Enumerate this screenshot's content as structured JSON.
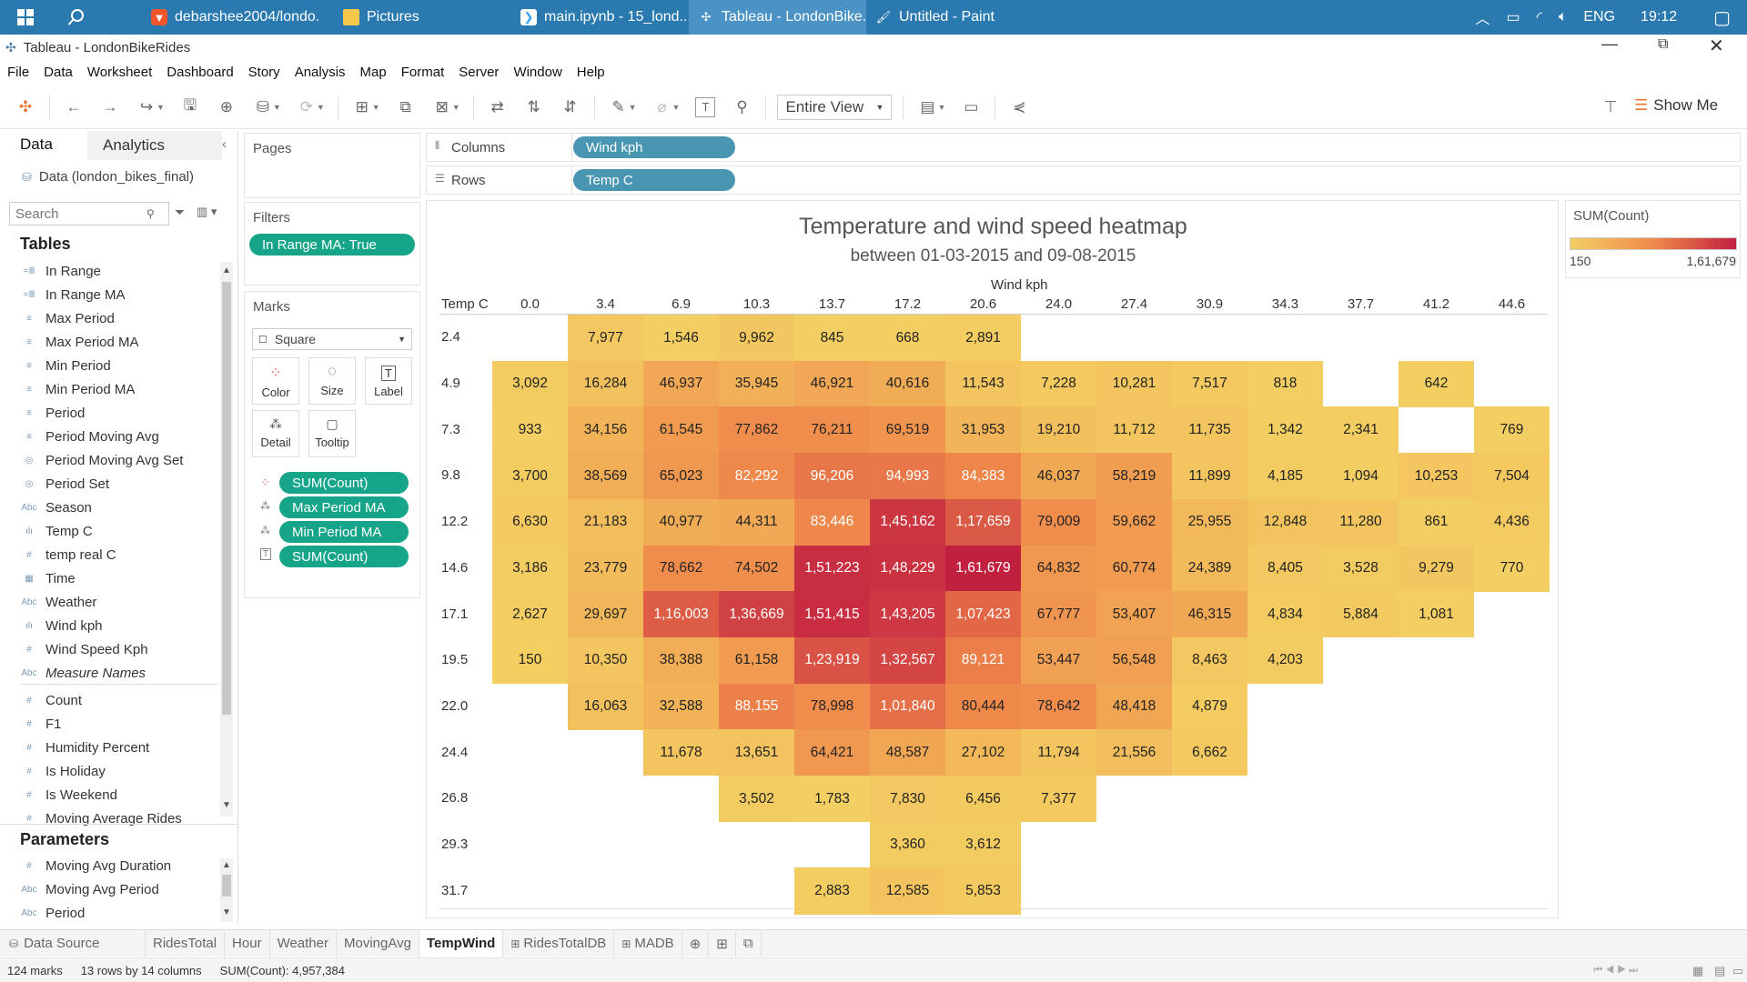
{
  "taskbar": {
    "tasks": [
      {
        "label": "debarshee2004/londo...",
        "icon": "brave-icon"
      },
      {
        "label": "Pictures",
        "icon": "folder-icon"
      },
      {
        "label": "main.ipynb - 15_lond...",
        "icon": "vscode-icon"
      },
      {
        "label": "Tableau - LondonBike...",
        "icon": "tableau-icon"
      },
      {
        "label": "Untitled - Paint",
        "icon": "paint-icon"
      }
    ],
    "lang": "ENG",
    "time": "19:12"
  },
  "window": {
    "title": "Tableau - LondonBikeRides"
  },
  "menu": [
    "File",
    "Data",
    "Worksheet",
    "Dashboard",
    "Story",
    "Analysis",
    "Map",
    "Format",
    "Server",
    "Window",
    "Help"
  ],
  "toolbar": {
    "view_select": "Entire View",
    "show_me": "Show Me"
  },
  "left_panel": {
    "tab_data": "Data",
    "tab_analytics": "Analytics",
    "datasource": "Data (london_bikes_final)",
    "search_placeholder": "Search",
    "tables_header": "Tables",
    "fields": [
      {
        "name": "In Range",
        "icon": "=Ⅲ"
      },
      {
        "name": "In Range MA",
        "icon": "=Ⅲ"
      },
      {
        "name": "Max Period",
        "icon": "≡"
      },
      {
        "name": "Max Period MA",
        "icon": "≡"
      },
      {
        "name": "Min Period",
        "icon": "≡"
      },
      {
        "name": "Min Period MA",
        "icon": "≡"
      },
      {
        "name": "Period",
        "icon": "≡"
      },
      {
        "name": "Period Moving Avg",
        "icon": "≡"
      },
      {
        "name": "Period Moving Avg Set",
        "icon": "◎"
      },
      {
        "name": "Period Set",
        "icon": "◎"
      },
      {
        "name": "Season",
        "icon": "Abc"
      },
      {
        "name": "Temp C",
        "icon": "ılı"
      },
      {
        "name": "temp real C",
        "icon": "#"
      },
      {
        "name": "Time",
        "icon": "▦"
      },
      {
        "name": "Weather",
        "icon": "Abc"
      },
      {
        "name": "Wind kph",
        "icon": "ılı"
      },
      {
        "name": "Wind Speed Kph",
        "icon": "#"
      },
      {
        "name": "Measure Names",
        "icon": "Abc"
      }
    ],
    "measures": [
      {
        "name": "Count",
        "icon": "#"
      },
      {
        "name": "F1",
        "icon": "#"
      },
      {
        "name": "Humidity Percent",
        "icon": "#"
      },
      {
        "name": "Is Holiday",
        "icon": "#"
      },
      {
        "name": "Is Weekend",
        "icon": "#"
      },
      {
        "name": "Moving Average Rides",
        "icon": "#"
      }
    ],
    "parameters_header": "Parameters",
    "parameters": [
      {
        "name": "Moving Avg Duration",
        "icon": "#"
      },
      {
        "name": "Moving Avg Period",
        "icon": "Abc"
      },
      {
        "name": "Period",
        "icon": "Abc"
      }
    ]
  },
  "pages": {
    "title": "Pages"
  },
  "filters": {
    "title": "Filters",
    "pill": "In Range MA: True"
  },
  "marks": {
    "title": "Marks",
    "mark_type": "Square",
    "buttons": [
      "Color",
      "Size",
      "Label",
      "Detail",
      "Tooltip"
    ],
    "pills": [
      "SUM(Count)",
      "Max Period MA",
      "Min Period MA",
      "SUM(Count)"
    ]
  },
  "shelves": {
    "columns_label": "Columns",
    "columns_pill": "Wind kph",
    "rows_label": "Rows",
    "rows_pill": "Temp C"
  },
  "legend": {
    "title": "SUM(Count)",
    "min": "150",
    "max": "1,61,679",
    "colors": [
      "#f3cf62",
      "#f08a4b",
      "#c2203f"
    ]
  },
  "chart_data": {
    "type": "heatmap",
    "title": "Temperature and wind speed heatmap",
    "subtitle": "between 01-03-2015 and 09-08-2015",
    "xlabel": "Wind kph",
    "ylabel": "Temp C",
    "x": [
      "0.0",
      "3.4",
      "6.9",
      "10.3",
      "13.7",
      "17.2",
      "20.6",
      "24.0",
      "27.4",
      "30.9",
      "34.3",
      "37.7",
      "41.2",
      "44.6"
    ],
    "y": [
      "2.4",
      "4.9",
      "7.3",
      "9.8",
      "12.2",
      "14.6",
      "17.1",
      "19.5",
      "22.0",
      "24.4",
      "26.8",
      "29.3",
      "31.7"
    ],
    "value_range": [
      150,
      161679
    ],
    "values": [
      [
        null,
        7977,
        1546,
        9962,
        845,
        668,
        2891,
        null,
        null,
        null,
        null,
        null,
        null,
        null
      ],
      [
        3092,
        16284,
        46937,
        35945,
        46921,
        40616,
        11543,
        7228,
        10281,
        7517,
        818,
        null,
        642,
        null
      ],
      [
        933,
        34156,
        61545,
        77862,
        76211,
        69519,
        31953,
        19210,
        11712,
        11735,
        1342,
        2341,
        null,
        769
      ],
      [
        3700,
        38569,
        65023,
        82292,
        96206,
        94993,
        84383,
        46037,
        58219,
        11899,
        4185,
        1094,
        10253,
        7504
      ],
      [
        6630,
        21183,
        40977,
        44311,
        83446,
        145162,
        117659,
        79009,
        59662,
        25955,
        12848,
        11280,
        861,
        4436
      ],
      [
        3186,
        23779,
        78662,
        74502,
        151223,
        148229,
        161679,
        64832,
        60774,
        24389,
        8405,
        3528,
        9279,
        770
      ],
      [
        2627,
        29697,
        116003,
        136669,
        151415,
        143205,
        107423,
        67777,
        53407,
        46315,
        4834,
        5884,
        1081,
        null
      ],
      [
        150,
        10350,
        38388,
        61158,
        123919,
        132567,
        89121,
        53447,
        56548,
        8463,
        4203,
        null,
        null,
        null
      ],
      [
        null,
        16063,
        32588,
        88155,
        78998,
        101840,
        80444,
        78642,
        48418,
        4879,
        null,
        null,
        null,
        null
      ],
      [
        null,
        null,
        11678,
        13651,
        64421,
        48587,
        27102,
        11794,
        21556,
        6662,
        null,
        null,
        null,
        null
      ],
      [
        null,
        null,
        null,
        3502,
        1783,
        7830,
        6456,
        7377,
        null,
        null,
        null,
        null,
        null,
        null
      ],
      [
        null,
        null,
        null,
        null,
        null,
        3360,
        3612,
        null,
        null,
        null,
        null,
        null,
        null,
        null
      ],
      [
        null,
        null,
        null,
        null,
        2883,
        12585,
        5853,
        null,
        null,
        null,
        null,
        null,
        null,
        null
      ]
    ],
    "labels": [
      [
        "",
        "7,977",
        "1,546",
        "9,962",
        "845",
        "668",
        "2,891",
        "",
        "",
        "",
        "",
        "",
        "",
        ""
      ],
      [
        "3,092",
        "16,284",
        "46,937",
        "35,945",
        "46,921",
        "40,616",
        "11,543",
        "7,228",
        "10,281",
        "7,517",
        "818",
        "",
        "642",
        ""
      ],
      [
        "933",
        "34,156",
        "61,545",
        "77,862",
        "76,211",
        "69,519",
        "31,953",
        "19,210",
        "11,712",
        "11,735",
        "1,342",
        "2,341",
        "",
        "769"
      ],
      [
        "3,700",
        "38,569",
        "65,023",
        "82,292",
        "96,206",
        "94,993",
        "84,383",
        "46,037",
        "58,219",
        "11,899",
        "4,185",
        "1,094",
        "10,253",
        "7,504"
      ],
      [
        "6,630",
        "21,183",
        "40,977",
        "44,311",
        "83,446",
        "1,45,162",
        "1,17,659",
        "79,009",
        "59,662",
        "25,955",
        "12,848",
        "11,280",
        "861",
        "4,436"
      ],
      [
        "3,186",
        "23,779",
        "78,662",
        "74,502",
        "1,51,223",
        "1,48,229",
        "1,61,679",
        "64,832",
        "60,774",
        "24,389",
        "8,405",
        "3,528",
        "9,279",
        "770"
      ],
      [
        "2,627",
        "29,697",
        "1,16,003",
        "1,36,669",
        "1,51,415",
        "1,43,205",
        "1,07,423",
        "67,777",
        "53,407",
        "46,315",
        "4,834",
        "5,884",
        "1,081",
        ""
      ],
      [
        "150",
        "10,350",
        "38,388",
        "61,158",
        "1,23,919",
        "1,32,567",
        "89,121",
        "53,447",
        "56,548",
        "8,463",
        "4,203",
        "",
        "",
        ""
      ],
      [
        "",
        "16,063",
        "32,588",
        "88,155",
        "78,998",
        "1,01,840",
        "80,444",
        "78,642",
        "48,418",
        "4,879",
        "",
        "",
        "",
        ""
      ],
      [
        "",
        "",
        "11,678",
        "13,651",
        "64,421",
        "48,587",
        "27,102",
        "11,794",
        "21,556",
        "6,662",
        "",
        "",
        "",
        ""
      ],
      [
        "",
        "",
        "",
        "3,502",
        "1,783",
        "7,830",
        "6,456",
        "7,377",
        "",
        "",
        "",
        "",
        "",
        ""
      ],
      [
        "",
        "",
        "",
        "",
        "",
        "3,360",
        "3,612",
        "",
        "",
        "",
        "",
        "",
        "",
        ""
      ],
      [
        "",
        "",
        "",
        "",
        "2,883",
        "12,585",
        "5,853",
        "",
        "",
        "",
        "",
        "",
        "",
        ""
      ]
    ]
  },
  "sheet_tabs": {
    "data_source": "Data Source",
    "tabs": [
      "RidesTotal",
      "Hour",
      "Weather",
      "MovingAvg",
      "TempWind",
      "RidesTotalDB",
      "MADB"
    ],
    "active": "TempWind"
  },
  "status": {
    "marks": "124 marks",
    "dims": "13 rows by 14 columns",
    "sum": "SUM(Count): 4,957,384"
  }
}
